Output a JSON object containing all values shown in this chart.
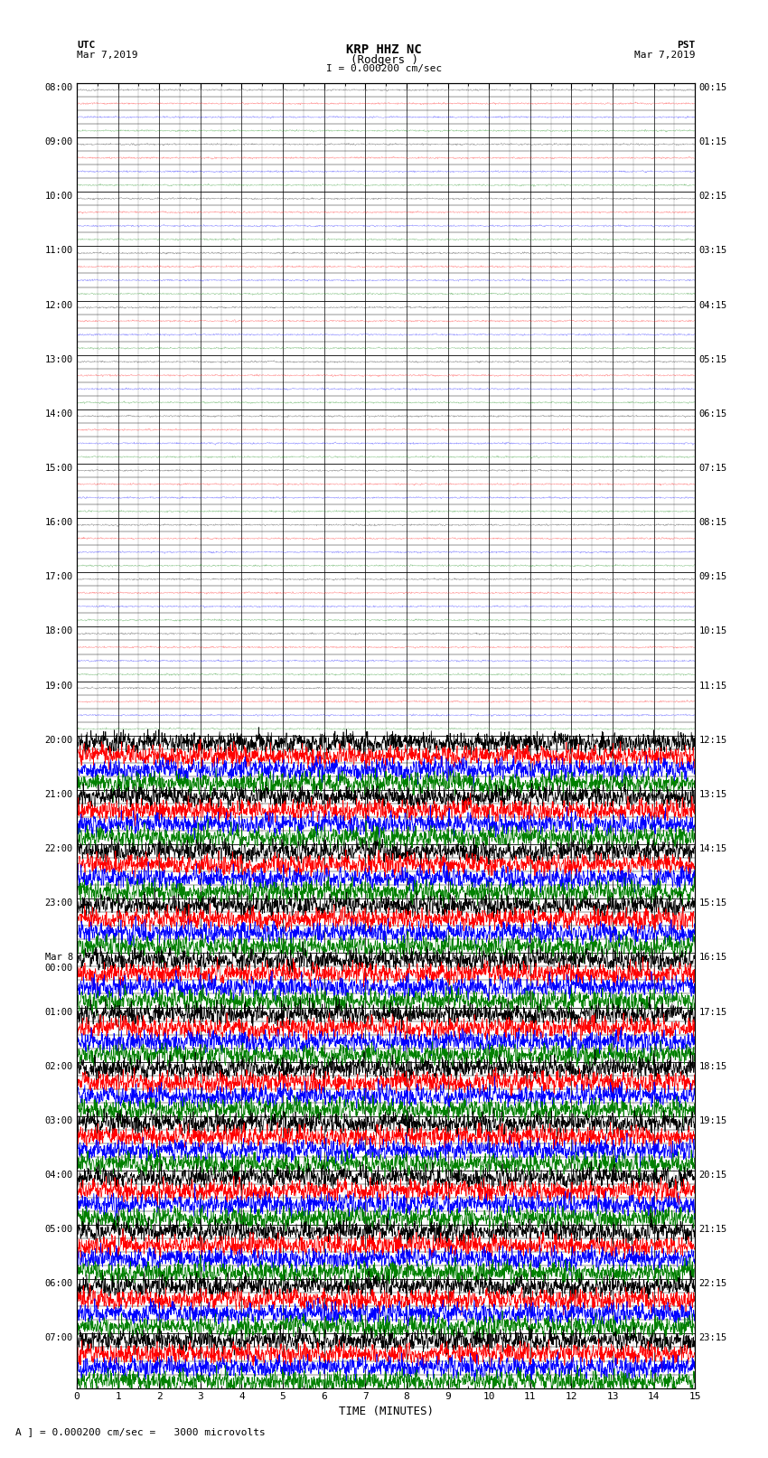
{
  "title_line1": "KRP HHZ NC",
  "title_line2": "(Rodgers )",
  "scale_text": "I = 0.000200 cm/sec",
  "left_label_line1": "UTC",
  "left_label_line2": "Mar 7,2019",
  "right_label_line1": "PST",
  "right_label_line2": "Mar 7,2019",
  "xlabel": "TIME (MINUTES)",
  "footer": "A ] = 0.000200 cm/sec =   3000 microvolts",
  "utc_labels": [
    "08:00",
    "09:00",
    "10:00",
    "11:00",
    "12:00",
    "13:00",
    "14:00",
    "15:00",
    "16:00",
    "17:00",
    "18:00",
    "19:00",
    "20:00",
    "21:00",
    "22:00",
    "23:00",
    "Mar 8\n00:00",
    "01:00",
    "02:00",
    "03:00",
    "04:00",
    "05:00",
    "06:00",
    "07:00"
  ],
  "pst_labels": [
    "00:15",
    "01:15",
    "02:15",
    "03:15",
    "04:15",
    "05:15",
    "06:15",
    "07:15",
    "08:15",
    "09:15",
    "10:15",
    "11:15",
    "12:15",
    "13:15",
    "14:15",
    "15:15",
    "16:15",
    "17:15",
    "18:15",
    "19:15",
    "20:15",
    "21:15",
    "22:15",
    "23:15"
  ],
  "n_rows": 24,
  "n_quiet_rows": 12,
  "colors_cycle": [
    "black",
    "red",
    "blue",
    "green"
  ],
  "xmin": 0,
  "xmax": 15,
  "xticks": [
    0,
    1,
    2,
    3,
    4,
    5,
    6,
    7,
    8,
    9,
    10,
    11,
    12,
    13,
    14,
    15
  ]
}
